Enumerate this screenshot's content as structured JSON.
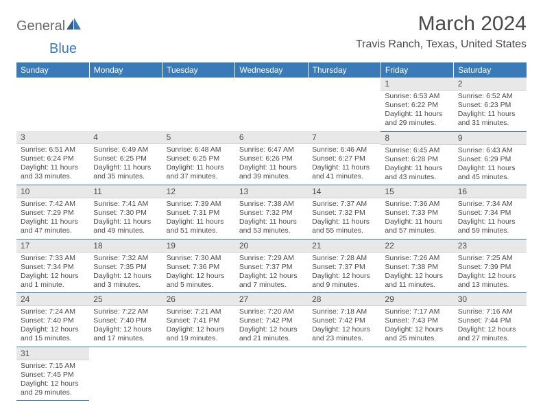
{
  "logo": {
    "text1": "General",
    "text2": "Blue"
  },
  "title": "March 2024",
  "location": "Travis Ranch, Texas, United States",
  "weekdays": [
    "Sunday",
    "Monday",
    "Tuesday",
    "Wednesday",
    "Thursday",
    "Friday",
    "Saturday"
  ],
  "colors": {
    "header_bg": "#3a7ab8",
    "header_text": "#ffffff",
    "daynum_bg": "#e8e8e8",
    "border": "#3a7ab8",
    "text": "#4a4a4a"
  },
  "weeks": [
    [
      null,
      null,
      null,
      null,
      null,
      {
        "n": "1",
        "sunrise": "Sunrise: 6:53 AM",
        "sunset": "Sunset: 6:22 PM",
        "daylight": "Daylight: 11 hours and 29 minutes."
      },
      {
        "n": "2",
        "sunrise": "Sunrise: 6:52 AM",
        "sunset": "Sunset: 6:23 PM",
        "daylight": "Daylight: 11 hours and 31 minutes."
      }
    ],
    [
      {
        "n": "3",
        "sunrise": "Sunrise: 6:51 AM",
        "sunset": "Sunset: 6:24 PM",
        "daylight": "Daylight: 11 hours and 33 minutes."
      },
      {
        "n": "4",
        "sunrise": "Sunrise: 6:49 AM",
        "sunset": "Sunset: 6:25 PM",
        "daylight": "Daylight: 11 hours and 35 minutes."
      },
      {
        "n": "5",
        "sunrise": "Sunrise: 6:48 AM",
        "sunset": "Sunset: 6:25 PM",
        "daylight": "Daylight: 11 hours and 37 minutes."
      },
      {
        "n": "6",
        "sunrise": "Sunrise: 6:47 AM",
        "sunset": "Sunset: 6:26 PM",
        "daylight": "Daylight: 11 hours and 39 minutes."
      },
      {
        "n": "7",
        "sunrise": "Sunrise: 6:46 AM",
        "sunset": "Sunset: 6:27 PM",
        "daylight": "Daylight: 11 hours and 41 minutes."
      },
      {
        "n": "8",
        "sunrise": "Sunrise: 6:45 AM",
        "sunset": "Sunset: 6:28 PM",
        "daylight": "Daylight: 11 hours and 43 minutes."
      },
      {
        "n": "9",
        "sunrise": "Sunrise: 6:43 AM",
        "sunset": "Sunset: 6:29 PM",
        "daylight": "Daylight: 11 hours and 45 minutes."
      }
    ],
    [
      {
        "n": "10",
        "sunrise": "Sunrise: 7:42 AM",
        "sunset": "Sunset: 7:29 PM",
        "daylight": "Daylight: 11 hours and 47 minutes."
      },
      {
        "n": "11",
        "sunrise": "Sunrise: 7:41 AM",
        "sunset": "Sunset: 7:30 PM",
        "daylight": "Daylight: 11 hours and 49 minutes."
      },
      {
        "n": "12",
        "sunrise": "Sunrise: 7:39 AM",
        "sunset": "Sunset: 7:31 PM",
        "daylight": "Daylight: 11 hours and 51 minutes."
      },
      {
        "n": "13",
        "sunrise": "Sunrise: 7:38 AM",
        "sunset": "Sunset: 7:32 PM",
        "daylight": "Daylight: 11 hours and 53 minutes."
      },
      {
        "n": "14",
        "sunrise": "Sunrise: 7:37 AM",
        "sunset": "Sunset: 7:32 PM",
        "daylight": "Daylight: 11 hours and 55 minutes."
      },
      {
        "n": "15",
        "sunrise": "Sunrise: 7:36 AM",
        "sunset": "Sunset: 7:33 PM",
        "daylight": "Daylight: 11 hours and 57 minutes."
      },
      {
        "n": "16",
        "sunrise": "Sunrise: 7:34 AM",
        "sunset": "Sunset: 7:34 PM",
        "daylight": "Daylight: 11 hours and 59 minutes."
      }
    ],
    [
      {
        "n": "17",
        "sunrise": "Sunrise: 7:33 AM",
        "sunset": "Sunset: 7:34 PM",
        "daylight": "Daylight: 12 hours and 1 minute."
      },
      {
        "n": "18",
        "sunrise": "Sunrise: 7:32 AM",
        "sunset": "Sunset: 7:35 PM",
        "daylight": "Daylight: 12 hours and 3 minutes."
      },
      {
        "n": "19",
        "sunrise": "Sunrise: 7:30 AM",
        "sunset": "Sunset: 7:36 PM",
        "daylight": "Daylight: 12 hours and 5 minutes."
      },
      {
        "n": "20",
        "sunrise": "Sunrise: 7:29 AM",
        "sunset": "Sunset: 7:37 PM",
        "daylight": "Daylight: 12 hours and 7 minutes."
      },
      {
        "n": "21",
        "sunrise": "Sunrise: 7:28 AM",
        "sunset": "Sunset: 7:37 PM",
        "daylight": "Daylight: 12 hours and 9 minutes."
      },
      {
        "n": "22",
        "sunrise": "Sunrise: 7:26 AM",
        "sunset": "Sunset: 7:38 PM",
        "daylight": "Daylight: 12 hours and 11 minutes."
      },
      {
        "n": "23",
        "sunrise": "Sunrise: 7:25 AM",
        "sunset": "Sunset: 7:39 PM",
        "daylight": "Daylight: 12 hours and 13 minutes."
      }
    ],
    [
      {
        "n": "24",
        "sunrise": "Sunrise: 7:24 AM",
        "sunset": "Sunset: 7:40 PM",
        "daylight": "Daylight: 12 hours and 15 minutes."
      },
      {
        "n": "25",
        "sunrise": "Sunrise: 7:22 AM",
        "sunset": "Sunset: 7:40 PM",
        "daylight": "Daylight: 12 hours and 17 minutes."
      },
      {
        "n": "26",
        "sunrise": "Sunrise: 7:21 AM",
        "sunset": "Sunset: 7:41 PM",
        "daylight": "Daylight: 12 hours and 19 minutes."
      },
      {
        "n": "27",
        "sunrise": "Sunrise: 7:20 AM",
        "sunset": "Sunset: 7:42 PM",
        "daylight": "Daylight: 12 hours and 21 minutes."
      },
      {
        "n": "28",
        "sunrise": "Sunrise: 7:18 AM",
        "sunset": "Sunset: 7:42 PM",
        "daylight": "Daylight: 12 hours and 23 minutes."
      },
      {
        "n": "29",
        "sunrise": "Sunrise: 7:17 AM",
        "sunset": "Sunset: 7:43 PM",
        "daylight": "Daylight: 12 hours and 25 minutes."
      },
      {
        "n": "30",
        "sunrise": "Sunrise: 7:16 AM",
        "sunset": "Sunset: 7:44 PM",
        "daylight": "Daylight: 12 hours and 27 minutes."
      }
    ],
    [
      {
        "n": "31",
        "sunrise": "Sunrise: 7:15 AM",
        "sunset": "Sunset: 7:45 PM",
        "daylight": "Daylight: 12 hours and 29 minutes."
      },
      null,
      null,
      null,
      null,
      null,
      null
    ]
  ]
}
